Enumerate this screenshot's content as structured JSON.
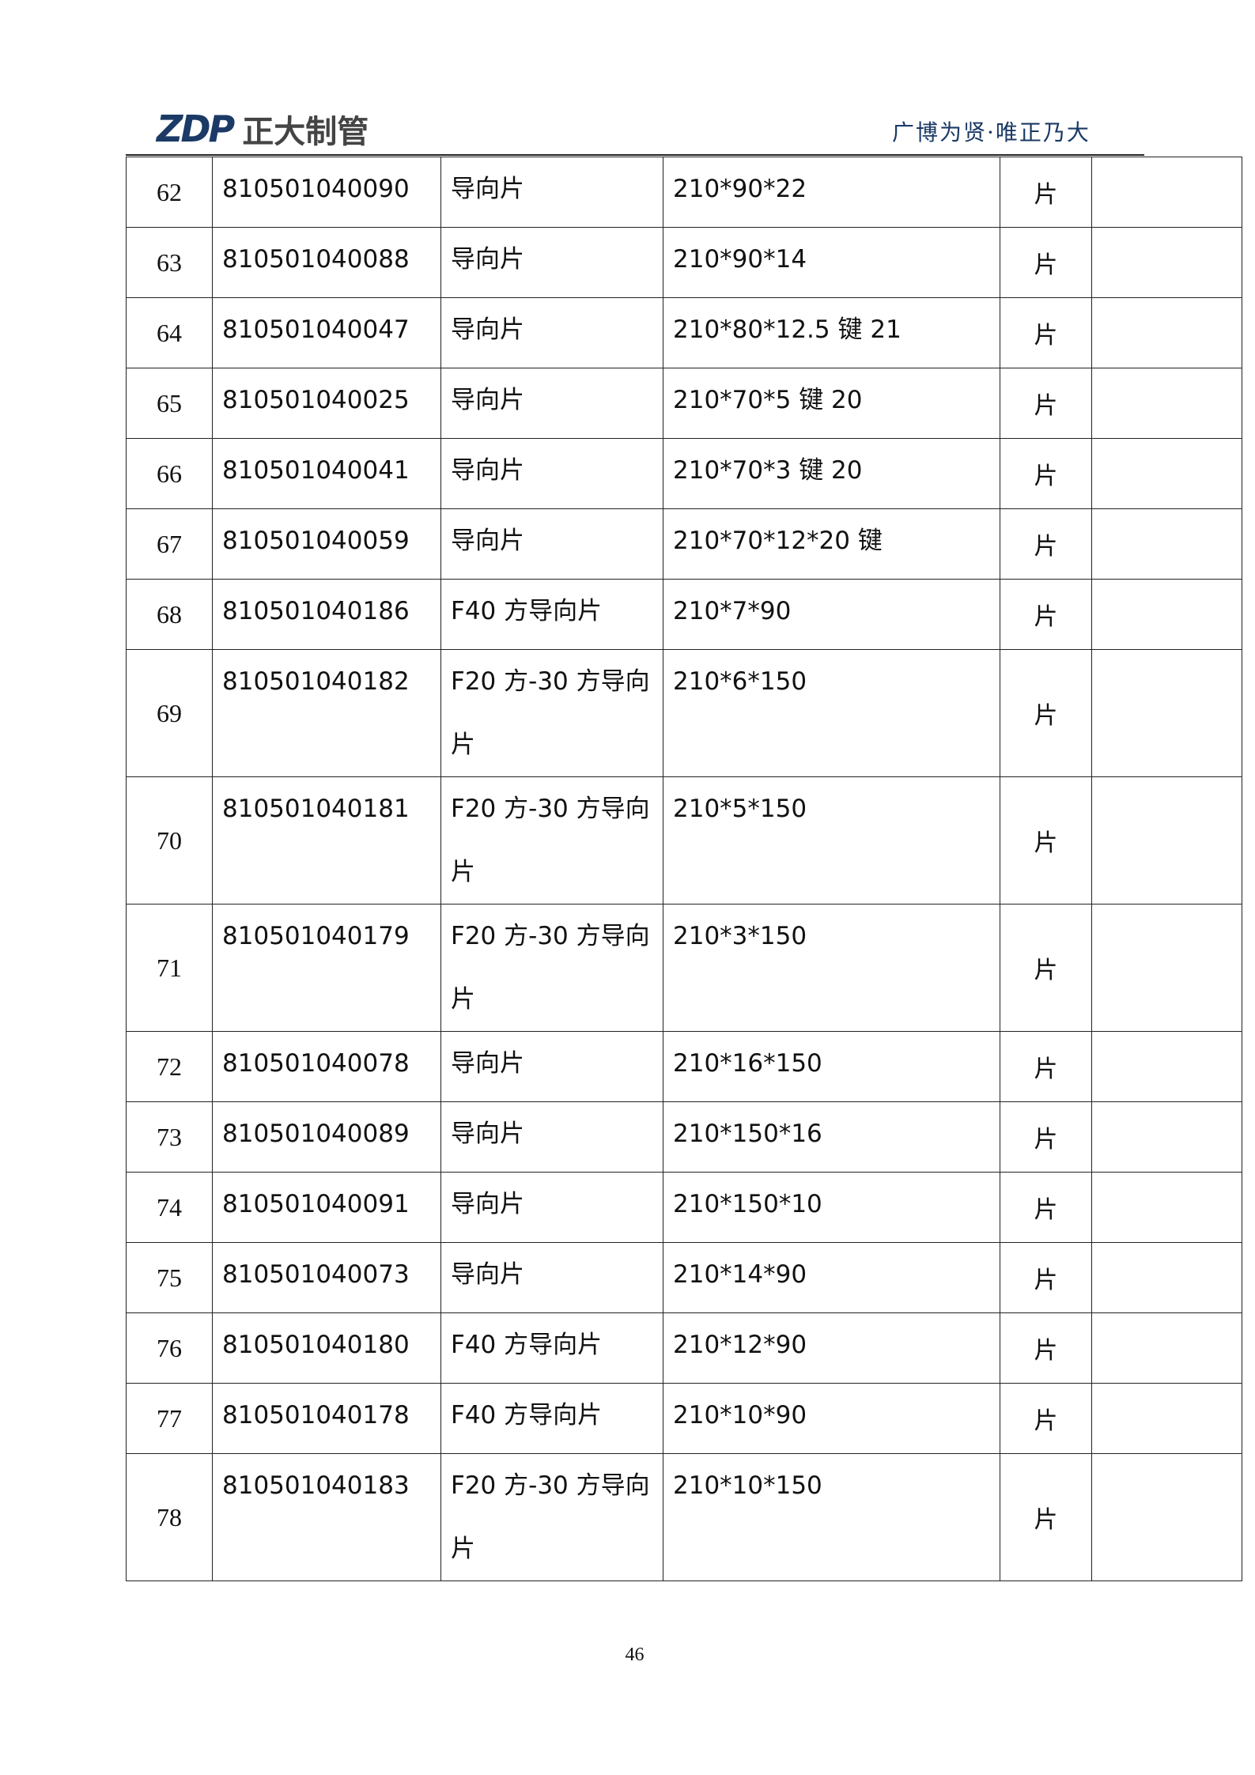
{
  "header": {
    "logo_text": "ZDP 正大制管",
    "slogan": "广博为贤·唯正乃大"
  },
  "rows": [
    {
      "no": "62",
      "code": "810501040090",
      "name": "导向片",
      "spec": "210*90*22",
      "unit": "片",
      "note": ""
    },
    {
      "no": "63",
      "code": "810501040088",
      "name": "导向片",
      "spec": "210*90*14",
      "unit": "片",
      "note": ""
    },
    {
      "no": "64",
      "code": "810501040047",
      "name": "导向片",
      "spec": "210*80*12.5 键 21",
      "unit": "片",
      "note": ""
    },
    {
      "no": "65",
      "code": "810501040025",
      "name": "导向片",
      "spec": "210*70*5 键 20",
      "unit": "片",
      "note": ""
    },
    {
      "no": "66",
      "code": "810501040041",
      "name": "导向片",
      "spec": "210*70*3 键 20",
      "unit": "片",
      "note": ""
    },
    {
      "no": "67",
      "code": "810501040059",
      "name": "导向片",
      "spec": "210*70*12*20 键",
      "unit": "片",
      "note": ""
    },
    {
      "no": "68",
      "code": "810501040186",
      "name": "F40 方导向片",
      "spec": "210*7*90",
      "unit": "片",
      "note": ""
    },
    {
      "no": "69",
      "code": "810501040182",
      "name": "F20 方-30 方导向片",
      "spec": "210*6*150",
      "unit": "片",
      "note": ""
    },
    {
      "no": "70",
      "code": "810501040181",
      "name": "F20 方-30 方导向片",
      "spec": "210*5*150",
      "unit": "片",
      "note": ""
    },
    {
      "no": "71",
      "code": "810501040179",
      "name": "F20 方-30 方导向片",
      "spec": "210*3*150",
      "unit": "片",
      "note": ""
    },
    {
      "no": "72",
      "code": "810501040078",
      "name": "导向片",
      "spec": "210*16*150",
      "unit": "片",
      "note": ""
    },
    {
      "no": "73",
      "code": "810501040089",
      "name": "导向片",
      "spec": "210*150*16",
      "unit": "片",
      "note": ""
    },
    {
      "no": "74",
      "code": "810501040091",
      "name": "导向片",
      "spec": "210*150*10",
      "unit": "片",
      "note": ""
    },
    {
      "no": "75",
      "code": "810501040073",
      "name": "导向片",
      "spec": "210*14*90",
      "unit": "片",
      "note": ""
    },
    {
      "no": "76",
      "code": "810501040180",
      "name": "F40 方导向片",
      "spec": "210*12*90",
      "unit": "片",
      "note": ""
    },
    {
      "no": "77",
      "code": "810501040178",
      "name": "F40 方导向片",
      "spec": "210*10*90",
      "unit": "片",
      "note": ""
    },
    {
      "no": "78",
      "code": "810501040183",
      "name": "F20 方-30 方导向片",
      "spec": "210*10*150",
      "unit": "片",
      "note": ""
    }
  ],
  "footer": {
    "page_number": "46"
  }
}
